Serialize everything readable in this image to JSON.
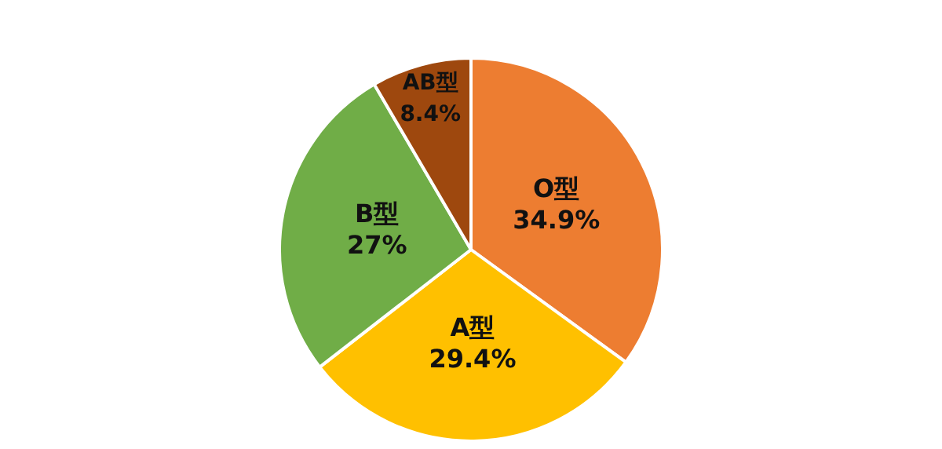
{
  "chart_data": {
    "type": "pie",
    "categories": [
      "O型",
      "A型",
      "B型",
      "AB型"
    ],
    "values": [
      34.9,
      29.4,
      27,
      8.4
    ],
    "colors": [
      "#ed7d31",
      "#ffc000",
      "#70ad47",
      "#9e480e"
    ],
    "value_labels": [
      "34.9%",
      "29.4%",
      "27%",
      "8.4%"
    ],
    "legend": false
  }
}
